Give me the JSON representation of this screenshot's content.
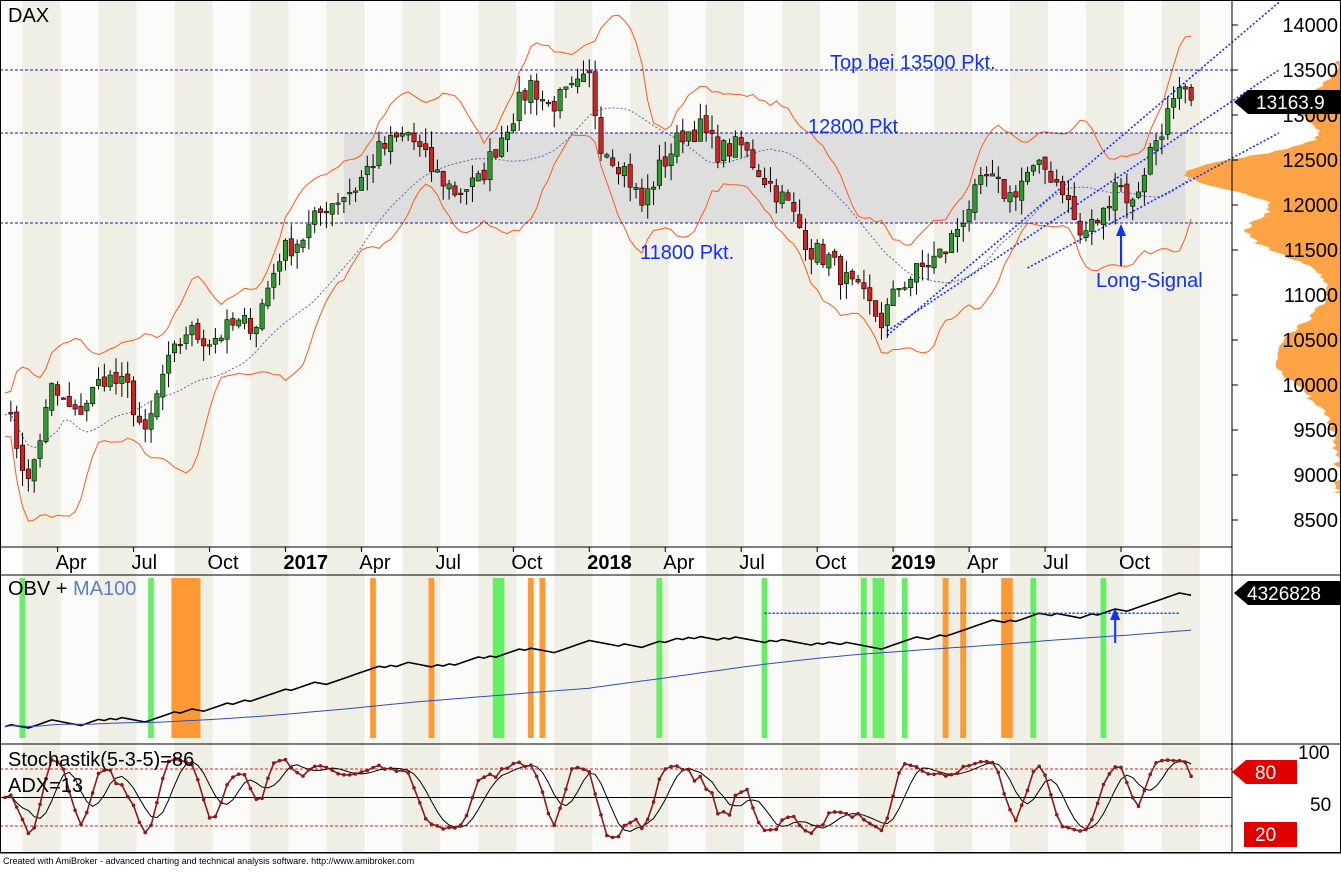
{
  "chart_data": [
    {
      "panel": "price",
      "type": "candlestick",
      "title": "DAX",
      "last_price_label": "13163.9",
      "y_ticks": [
        14000,
        13500,
        13000,
        12500,
        12000,
        11500,
        11000,
        10500,
        10000,
        9500,
        9000,
        8500
      ],
      "ylim": [
        8300,
        14250
      ],
      "x_labels": [
        {
          "text": "Apr",
          "bold": false,
          "week": 9
        },
        {
          "text": "Jul",
          "bold": false,
          "week": 22
        },
        {
          "text": "Oct",
          "bold": false,
          "week": 35
        },
        {
          "text": "2017",
          "bold": true,
          "week": 48
        },
        {
          "text": "Apr",
          "bold": false,
          "week": 61
        },
        {
          "text": "Jul",
          "bold": false,
          "week": 74
        },
        {
          "text": "Oct",
          "bold": false,
          "week": 87
        },
        {
          "text": "2018",
          "bold": true,
          "week": 100
        },
        {
          "text": "Apr",
          "bold": false,
          "week": 113
        },
        {
          "text": "Jul",
          "bold": false,
          "week": 126
        },
        {
          "text": "Oct",
          "bold": false,
          "week": 139
        },
        {
          "text": "2019",
          "bold": true,
          "week": 152
        },
        {
          "text": "Apr",
          "bold": false,
          "week": 165
        },
        {
          "text": "Jul",
          "bold": false,
          "week": 178
        },
        {
          "text": "Oct",
          "bold": false,
          "week": 191
        }
      ],
      "total_weeks": 210,
      "close_anchors": [
        [
          0,
          9800
        ],
        [
          4,
          8900
        ],
        [
          8,
          9950
        ],
        [
          12,
          9650
        ],
        [
          17,
          10100
        ],
        [
          21,
          9950
        ],
        [
          24,
          9400
        ],
        [
          27,
          10100
        ],
        [
          31,
          10600
        ],
        [
          35,
          10500
        ],
        [
          39,
          10650
        ],
        [
          43,
          10700
        ],
        [
          47,
          11450
        ],
        [
          51,
          11650
        ],
        [
          55,
          12000
        ],
        [
          60,
          12200
        ],
        [
          64,
          12600
        ],
        [
          69,
          12800
        ],
        [
          73,
          12400
        ],
        [
          77,
          12150
        ],
        [
          81,
          12250
        ],
        [
          86,
          12900
        ],
        [
          90,
          13350
        ],
        [
          93,
          13100
        ],
        [
          97,
          13250
        ],
        [
          100,
          13400
        ],
        [
          102,
          12700
        ],
        [
          106,
          12400
        ],
        [
          109,
          12000
        ],
        [
          112,
          12400
        ],
        [
          116,
          12800
        ],
        [
          119,
          12850
        ],
        [
          122,
          12600
        ],
        [
          126,
          12650
        ],
        [
          130,
          12300
        ],
        [
          134,
          12000
        ],
        [
          138,
          11500
        ],
        [
          141,
          11400
        ],
        [
          144,
          11150
        ],
        [
          147,
          10950
        ],
        [
          150,
          10700
        ],
        [
          153,
          11100
        ],
        [
          157,
          11300
        ],
        [
          161,
          11500
        ],
        [
          165,
          12000
        ],
        [
          168,
          12300
        ],
        [
          172,
          12100
        ],
        [
          175,
          12350
        ],
        [
          178,
          12400
        ],
        [
          181,
          12200
        ],
        [
          184,
          11650
        ],
        [
          188,
          11900
        ],
        [
          190,
          12300
        ],
        [
          193,
          12000
        ],
        [
          196,
          12600
        ],
        [
          199,
          13000
        ],
        [
          201,
          13200
        ],
        [
          203,
          13164
        ]
      ],
      "candle_colors": {
        "up": "#2e9a2e",
        "down": "#d42020"
      },
      "consolidation_zone": {
        "from_week": 58,
        "to_week": 202,
        "low": 11800,
        "high": 12800,
        "color": "#dcdcdc"
      },
      "horizontal_levels": [
        {
          "value": 13500,
          "label": "Top bei 13500 Pkt."
        },
        {
          "value": 12800,
          "label": "12800 Pkt"
        },
        {
          "value": 11800,
          "label": "11800 Pkt."
        }
      ],
      "trend_channel": {
        "start_week": 151,
        "lines": [
          {
            "start": 10550,
            "end_week": 218,
            "end": 14250
          },
          {
            "start": 10600,
            "end_week": 218,
            "end": 13500
          }
        ],
        "secondary": [
          {
            "start_week": 175,
            "start": 11300,
            "end_week": 218,
            "end": 12800
          }
        ]
      },
      "annotation": {
        "text": "Long-Signal",
        "week": 191,
        "value": 11700,
        "color": "#1030ff"
      },
      "volume_profile": {
        "color": "#ff9933"
      },
      "bollinger_color": "#ff5a1e",
      "ma_color": "#5b6ba8"
    },
    {
      "panel": "obv",
      "type": "line",
      "title": "OBV + ",
      "ma_title": "MA100",
      "last_value_label": "4326828",
      "series_colors": {
        "obv": "#000000",
        "ma": "#3050b0"
      },
      "highlight_bars": [
        {
          "week": 3,
          "color": "#66ee66",
          "width": 1
        },
        {
          "week": 25,
          "color": "#66ee66",
          "width": 1
        },
        {
          "week": 29,
          "color": "#ff9933",
          "width": 5
        },
        {
          "week": 63,
          "color": "#ff9933",
          "width": 1
        },
        {
          "week": 73,
          "color": "#ff9933",
          "width": 1
        },
        {
          "week": 84,
          "color": "#66ee66",
          "width": 2
        },
        {
          "week": 90,
          "color": "#ff9933",
          "width": 1
        },
        {
          "week": 92,
          "color": "#ff9933",
          "width": 1
        },
        {
          "week": 112,
          "color": "#66ee66",
          "width": 1
        },
        {
          "week": 130,
          "color": "#66ee66",
          "width": 1
        },
        {
          "week": 147,
          "color": "#66ee66",
          "width": 1
        },
        {
          "week": 149,
          "color": "#66ee66",
          "width": 2
        },
        {
          "week": 154,
          "color": "#66ee66",
          "width": 1
        },
        {
          "week": 161,
          "color": "#ff9933",
          "width": 1
        },
        {
          "week": 164,
          "color": "#ff9933",
          "width": 1
        },
        {
          "week": 171,
          "color": "#ff9933",
          "width": 2
        },
        {
          "week": 176,
          "color": "#66ee66",
          "width": 1
        },
        {
          "week": 188,
          "color": "#66ee66",
          "width": 1
        }
      ],
      "resistance_line": {
        "from_week": 130,
        "to_week": 201,
        "level": 0.78
      }
    },
    {
      "panel": "stochastic",
      "type": "line",
      "title": "Stochastik(5-3-5)=86",
      "subtitle": "ADX=13",
      "y_ticks": [
        100,
        50
      ],
      "ylim": [
        0,
        100
      ],
      "levels": [
        {
          "value": 80,
          "label": "80",
          "color": "#d42020"
        },
        {
          "value": 50,
          "label": "",
          "color": "#000000"
        },
        {
          "value": 20,
          "label": "20",
          "color": "#d42020"
        }
      ],
      "series_colors": {
        "k": "#8b1a1a",
        "d": "#000000"
      }
    }
  ],
  "footer": {
    "credit": "Created with AmiBroker - advanced charting and technical analysis software. http://www.amibroker.com"
  }
}
